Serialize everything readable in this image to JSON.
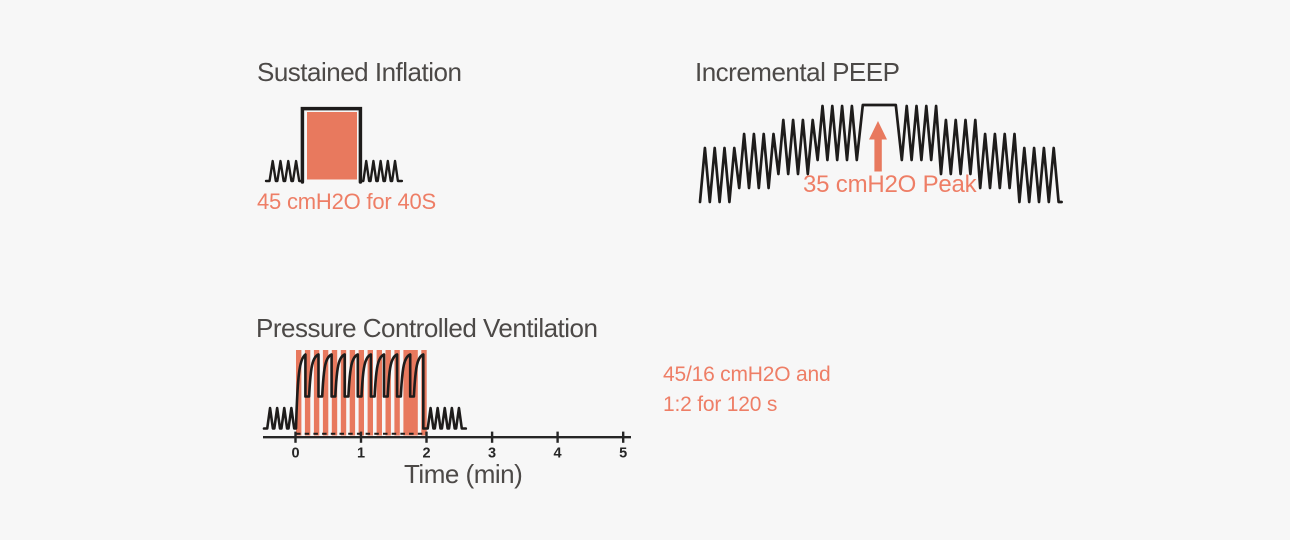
{
  "figure": {
    "background": "#f7f7f7",
    "colors": {
      "accent": "#e8795e",
      "accent_text": "#ee7e66",
      "heading": "#4c4947",
      "trace": "#1e1c1b",
      "axis": "#262626"
    },
    "panels": {
      "sustained_inflation": {
        "title": "Sustained Inflation",
        "caption": "45 cmH2O for 40S"
      },
      "incremental_peep": {
        "title": "Incremental PEEP",
        "peak_label": "35 cmH2O Peak"
      },
      "pressure_controlled_ventilation": {
        "title": "Pressure Controlled Ventilation",
        "note_line1": "45/16 cmH2O and",
        "note_line2": "1:2 for 120 s",
        "axis": {
          "label": "Time (min)",
          "ticks": [
            "0",
            "1",
            "2",
            "3",
            "4",
            "5"
          ]
        }
      }
    }
  }
}
